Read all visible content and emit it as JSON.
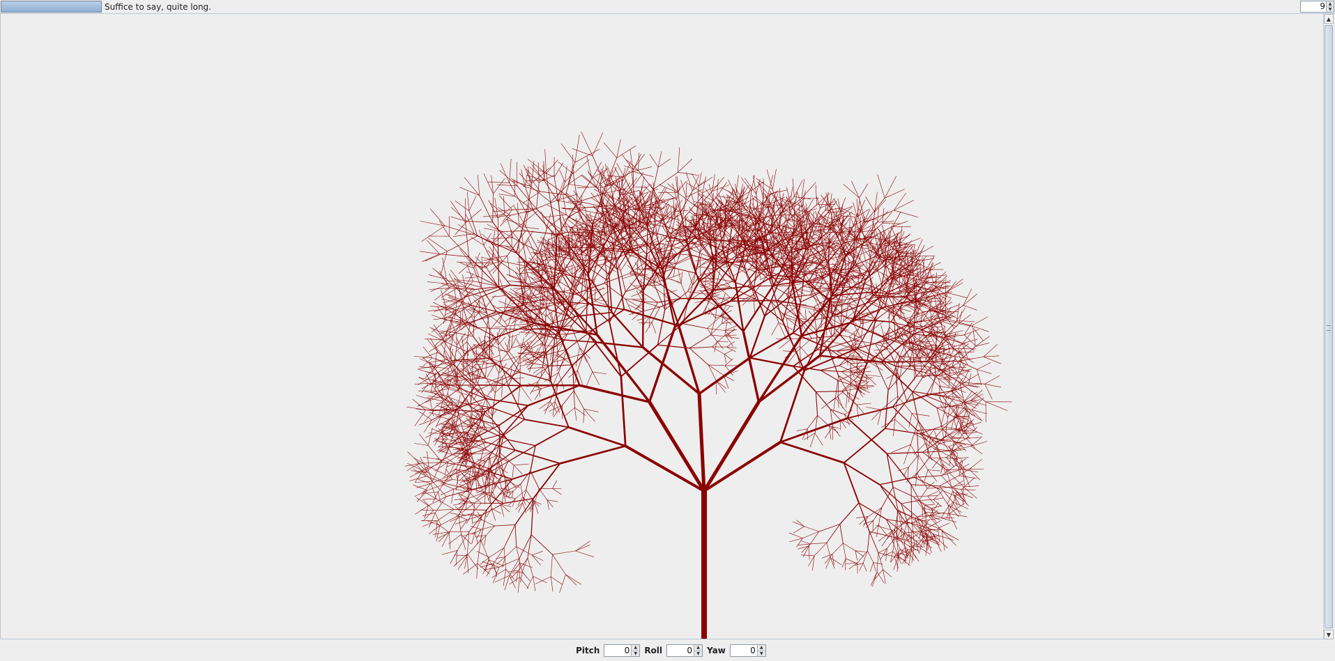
{
  "status": {
    "message": "Suffice to say, quite long.",
    "progress": 1.0,
    "depth_value": "9"
  },
  "canvas": {
    "branch_color": "#8b0000",
    "background": "#eeeeee"
  },
  "controls": {
    "pitch_label": "Pitch",
    "pitch_value": "0",
    "roll_label": "Roll",
    "roll_value": "0",
    "yaw_label": "Yaw",
    "yaw_value": "0"
  },
  "icons": {
    "spin_up": "up-arrow-icon",
    "spin_down": "down-arrow-icon",
    "scroll_up": "scroll-up-arrow-icon",
    "scroll_down": "scroll-down-arrow-icon"
  }
}
